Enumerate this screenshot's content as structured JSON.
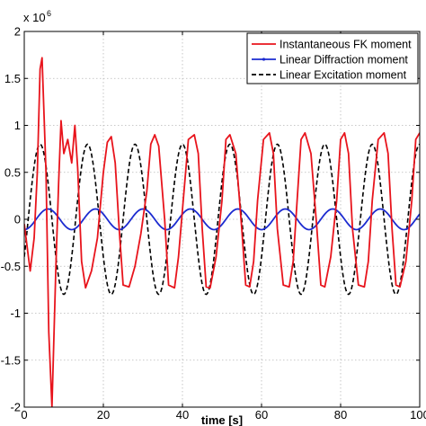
{
  "chart_data": {
    "type": "line",
    "title": "",
    "xlabel": "time [s]",
    "ylabel": "",
    "y_exponent_label": "x 10",
    "y_exponent_power": "6",
    "xlim": [
      0,
      100
    ],
    "ylim": [
      -2,
      2
    ],
    "grid": true,
    "legend_position": "top-right",
    "x_ticks": [
      "0",
      "20",
      "40",
      "60",
      "80",
      "100"
    ],
    "y_ticks": [
      "2",
      "1.5",
      "1",
      "0.5",
      "0",
      "-0.5",
      "-1",
      "-1.5",
      "-2"
    ],
    "series": [
      {
        "name": "Instantaneous FK moment",
        "color": "#e8141c",
        "style": "solid",
        "x": [
          0,
          1.5,
          2.5,
          3.3,
          4,
          4.5,
          5.5,
          6.2,
          7,
          8,
          8.7,
          9.3,
          10,
          11,
          12,
          12.8,
          13.5,
          14.5,
          15.5,
          17,
          18.5,
          20,
          21,
          22,
          23,
          24,
          25,
          26.5,
          28,
          29.5,
          31,
          32,
          33,
          34,
          35.5,
          36.5,
          38,
          39,
          40,
          41.5,
          43,
          44,
          45,
          46,
          47,
          48.5,
          50,
          51,
          52,
          53.5,
          55,
          56,
          57,
          58,
          59,
          60.5,
          62,
          63,
          64,
          65.5,
          67,
          68,
          69,
          70,
          71,
          72.5,
          74,
          75,
          76,
          77.5,
          79,
          80,
          81,
          82,
          83,
          84.5,
          86,
          87,
          88,
          89.5,
          91,
          92,
          93,
          94,
          95,
          96.5,
          98,
          99,
          100
        ],
        "y": [
          -0.05,
          -0.55,
          -0.2,
          0.5,
          1.6,
          1.72,
          0.5,
          -1.2,
          -2.0,
          -0.5,
          0.4,
          1.05,
          0.7,
          0.85,
          0.6,
          1.0,
          0.55,
          -0.45,
          -0.73,
          -0.55,
          -0.2,
          0.5,
          0.82,
          0.88,
          0.6,
          -0.1,
          -0.7,
          -0.72,
          -0.5,
          -0.15,
          0.3,
          0.8,
          0.9,
          0.78,
          0.0,
          -0.7,
          -0.73,
          -0.4,
          0.1,
          0.85,
          0.9,
          0.7,
          -0.1,
          -0.72,
          -0.73,
          -0.4,
          0.2,
          0.85,
          0.9,
          0.7,
          -0.1,
          -0.7,
          -0.72,
          -0.45,
          0.2,
          0.85,
          0.92,
          0.7,
          -0.1,
          -0.7,
          -0.72,
          -0.45,
          0.2,
          0.85,
          0.92,
          0.7,
          -0.1,
          -0.7,
          -0.72,
          -0.4,
          0.2,
          0.85,
          0.92,
          0.7,
          -0.1,
          -0.7,
          -0.72,
          -0.45,
          0.2,
          0.85,
          0.92,
          0.7,
          -0.1,
          -0.7,
          -0.72,
          -0.45,
          0.2,
          0.85,
          0.92
        ]
      },
      {
        "name": "Linear Diffraction moment",
        "color": "#1c2bd0",
        "style": "solid",
        "amplitude": 0.11,
        "period": 12.0,
        "phase_deg": -90,
        "x_range": [
          0,
          100
        ]
      },
      {
        "name": "Linear Excitation moment",
        "color": "#000000",
        "style": "dashed",
        "amplitude": 0.8,
        "period": 12.0,
        "phase_deg": -30,
        "x_range": [
          0,
          100
        ]
      }
    ]
  }
}
